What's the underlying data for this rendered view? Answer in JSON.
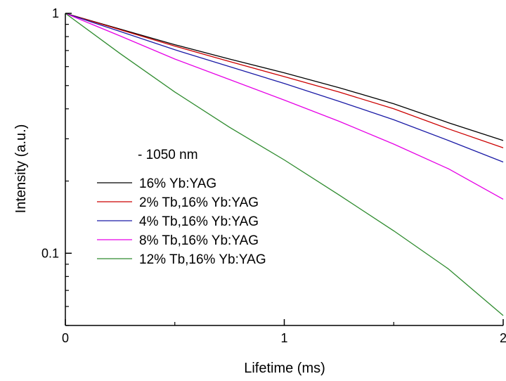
{
  "chart_data": {
    "type": "line",
    "title": "",
    "xlabel": "Lifetime (ms)",
    "ylabel": "Intensity (a.u.)",
    "xlim": [
      0,
      2
    ],
    "ylim": [
      0.05,
      1
    ],
    "yscale": "log",
    "x_ticks": [
      {
        "value": 0,
        "label": "0"
      },
      {
        "value": 1,
        "label": "1"
      },
      {
        "value": 2,
        "label": "2"
      }
    ],
    "y_ticks": [
      {
        "value": 0.1,
        "label": "0.1"
      },
      {
        "value": 1,
        "label": "1"
      }
    ],
    "grid": false,
    "legend_title": "- 1050 nm",
    "legend_position": "left",
    "x": [
      0,
      0.25,
      0.5,
      0.75,
      1.0,
      1.25,
      1.5,
      1.75,
      2.0
    ],
    "series": [
      {
        "name": "16% Yb:YAG",
        "color": "#000000",
        "values": [
          1.0,
          0.86,
          0.74,
          0.645,
          0.565,
          0.49,
          0.42,
          0.35,
          0.295
        ]
      },
      {
        "name": "2% Tb,16% Yb:YAG",
        "color": "#cc0000",
        "values": [
          1.0,
          0.855,
          0.73,
          0.63,
          0.545,
          0.47,
          0.4,
          0.33,
          0.275
        ]
      },
      {
        "name": "4% Tb,16% Yb:YAG",
        "color": "#1a1aa6",
        "values": [
          1.0,
          0.84,
          0.705,
          0.6,
          0.51,
          0.43,
          0.36,
          0.295,
          0.24
        ]
      },
      {
        "name": "8% Tb,16% Yb:YAG",
        "color": "#e600e6",
        "values": [
          1.0,
          0.805,
          0.645,
          0.53,
          0.435,
          0.355,
          0.285,
          0.225,
          0.168
        ]
      },
      {
        "name": "12% Tb,16% Yb:YAG",
        "color": "#2e8b2e",
        "values": [
          1.0,
          0.68,
          0.47,
          0.335,
          0.245,
          0.175,
          0.124,
          0.086,
          0.055
        ]
      }
    ]
  }
}
